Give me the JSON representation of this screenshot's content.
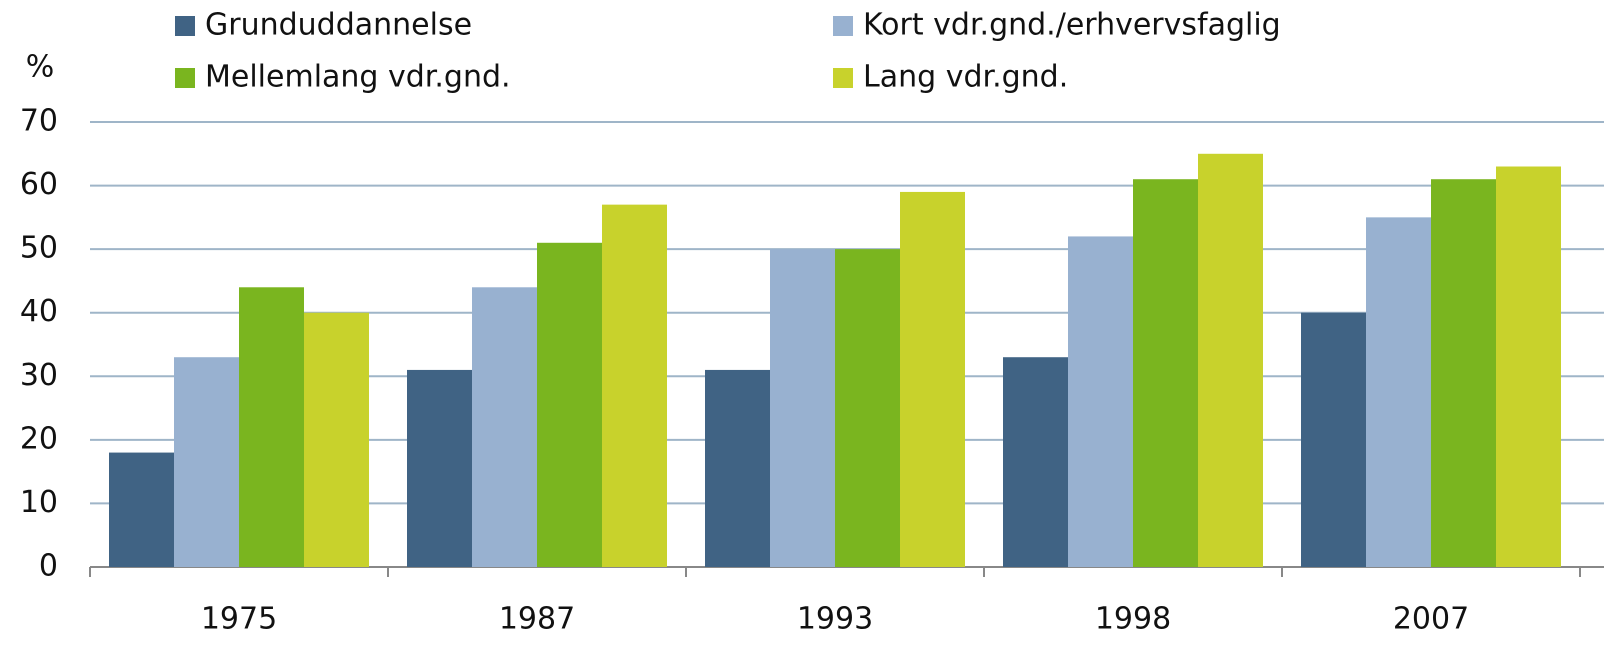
{
  "chart_data": {
    "type": "bar",
    "y_label": "%",
    "categories": [
      "1975",
      "1987",
      "1993",
      "1998",
      "2007"
    ],
    "series": [
      {
        "name": "Grunduddannelse",
        "color": "#406384",
        "values": [
          18,
          31,
          31,
          33,
          40
        ]
      },
      {
        "name": "Kort vdr.gnd./erhvervsfaglig",
        "color": "#98b1d0",
        "values": [
          33,
          44,
          50,
          52,
          55
        ]
      },
      {
        "name": "Mellemlang vdr.gnd.",
        "color": "#7ab51f",
        "values": [
          44,
          51,
          50,
          61,
          61
        ]
      },
      {
        "name": "Lang vdr.gnd.",
        "color": "#c8d22c",
        "values": [
          40,
          57,
          59,
          65,
          63
        ]
      }
    ],
    "ylim": [
      0,
      70
    ],
    "yticks": [
      0,
      10,
      20,
      30,
      40,
      50,
      60,
      70
    ],
    "grid": true,
    "legend": "top"
  }
}
